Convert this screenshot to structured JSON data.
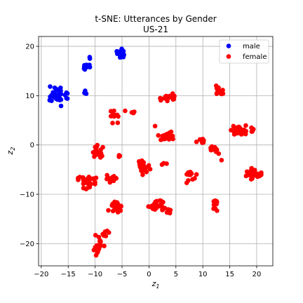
{
  "chart_data": {
    "type": "scatter",
    "title": "t-SNE: Utterances by Gender",
    "subtitle": "US-21",
    "xlabel": "z",
    "xlabel_sub": "1",
    "ylabel": "z",
    "ylabel_sub": "2",
    "xlim": [
      -20.5,
      23.0
    ],
    "ylim": [
      -24.5,
      22.0
    ],
    "xticks": [
      -20,
      -15,
      -10,
      -5,
      0,
      5,
      10,
      15,
      20
    ],
    "yticks": [
      -20,
      -10,
      0,
      10,
      20
    ],
    "grid": true,
    "legend_position": "top-right",
    "series": [
      {
        "name": "male",
        "color": "#0000ff",
        "clusters": [
          {
            "center": [
              -16.8,
              9.9
            ],
            "spread": [
              0.75,
              0.9
            ],
            "count": 38
          },
          {
            "center": [
              -11.5,
              15.9
            ],
            "spread": [
              0.55,
              0.3
            ],
            "count": 14
          },
          {
            "center": [
              -11.0,
              17.7
            ],
            "spread": [
              0.15,
              0.15
            ],
            "count": 2
          },
          {
            "center": [
              -11.9,
              10.6
            ],
            "spread": [
              0.2,
              0.2
            ],
            "count": 3
          },
          {
            "center": [
              -5.1,
              18.6
            ],
            "spread": [
              0.4,
              0.4
            ],
            "count": 22
          }
        ]
      },
      {
        "name": "female",
        "color": "#ff0000",
        "clusters": [
          {
            "center": [
              3.6,
              9.4
            ],
            "spread": [
              0.7,
              0.5
            ],
            "count": 22
          },
          {
            "center": [
              12.7,
              10.9
            ],
            "spread": [
              0.5,
              0.5
            ],
            "count": 14
          },
          {
            "center": [
              -6.6,
              5.8
            ],
            "spread": [
              0.55,
              0.7
            ],
            "count": 14
          },
          {
            "center": [
              -3.5,
              6.8
            ],
            "spread": [
              0.45,
              0.2
            ],
            "count": 4
          },
          {
            "center": [
              3.5,
              1.7
            ],
            "spread": [
              0.8,
              0.6
            ],
            "count": 24
          },
          {
            "center": [
              1.4,
              3.8
            ],
            "spread": [
              0.15,
              0.15
            ],
            "count": 1
          },
          {
            "center": [
              9.8,
              0.8
            ],
            "spread": [
              0.7,
              0.3
            ],
            "count": 8
          },
          {
            "center": [
              12.3,
              -0.8
            ],
            "spread": [
              0.5,
              0.5
            ],
            "count": 10
          },
          {
            "center": [
              13.3,
              -3.0
            ],
            "spread": [
              0.15,
              0.15
            ],
            "count": 1
          },
          {
            "center": [
              16.7,
              3.0
            ],
            "spread": [
              0.7,
              0.7
            ],
            "count": 28
          },
          {
            "center": [
              19.6,
              3.2
            ],
            "spread": [
              0.35,
              0.3
            ],
            "count": 4
          },
          {
            "center": [
              -9.5,
              -1.2
            ],
            "spread": [
              0.5,
              0.6
            ],
            "count": 20
          },
          {
            "center": [
              -5.5,
              -2.4
            ],
            "spread": [
              0.15,
              0.2
            ],
            "count": 3
          },
          {
            "center": [
              -11.4,
              -7.4
            ],
            "spread": [
              0.8,
              0.7
            ],
            "count": 30
          },
          {
            "center": [
              -7.4,
              -7.0
            ],
            "spread": [
              0.6,
              0.5
            ],
            "count": 12
          },
          {
            "center": [
              -1.1,
              -4.5
            ],
            "spread": [
              0.6,
              0.7
            ],
            "count": 22
          },
          {
            "center": [
              2.8,
              -3.8
            ],
            "spread": [
              0.3,
              0.2
            ],
            "count": 3
          },
          {
            "center": [
              8.0,
              -6.6
            ],
            "spread": [
              0.5,
              0.8
            ],
            "count": 12
          },
          {
            "center": [
              19.3,
              -6.0
            ],
            "spread": [
              0.7,
              0.6
            ],
            "count": 26
          },
          {
            "center": [
              -6.0,
              -12.7
            ],
            "spread": [
              0.7,
              0.6
            ],
            "count": 20
          },
          {
            "center": [
              1.5,
              -12.3
            ],
            "spread": [
              0.9,
              0.6
            ],
            "count": 28
          },
          {
            "center": [
              4.0,
              -13.4
            ],
            "spread": [
              0.3,
              0.3
            ],
            "count": 5
          },
          {
            "center": [
              12.3,
              -12.0
            ],
            "spread": [
              0.4,
              0.6
            ],
            "count": 16
          },
          {
            "center": [
              -9.3,
              -20.2
            ],
            "spread": [
              0.5,
              1.1
            ],
            "count": 22
          },
          {
            "center": [
              -7.8,
              -17.8
            ],
            "spread": [
              0.3,
              0.3
            ],
            "count": 4
          }
        ]
      }
    ]
  }
}
